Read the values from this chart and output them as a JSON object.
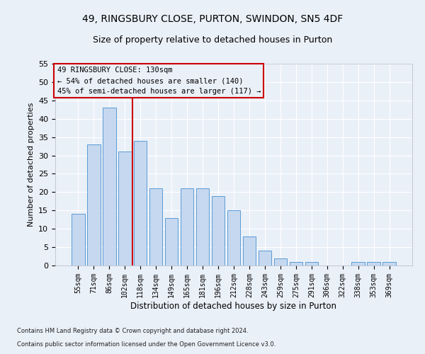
{
  "title1": "49, RINGSBURY CLOSE, PURTON, SWINDON, SN5 4DF",
  "title2": "Size of property relative to detached houses in Purton",
  "xlabel": "Distribution of detached houses by size in Purton",
  "ylabel": "Number of detached properties",
  "categories": [
    "55sqm",
    "71sqm",
    "86sqm",
    "102sqm",
    "118sqm",
    "134sqm",
    "149sqm",
    "165sqm",
    "181sqm",
    "196sqm",
    "212sqm",
    "228sqm",
    "243sqm",
    "259sqm",
    "275sqm",
    "291sqm",
    "306sqm",
    "322sqm",
    "338sqm",
    "353sqm",
    "369sqm"
  ],
  "values": [
    14,
    33,
    43,
    31,
    34,
    21,
    13,
    21,
    21,
    19,
    15,
    8,
    4,
    2,
    1,
    1,
    0,
    0,
    1,
    1,
    1
  ],
  "bar_color": "#c5d8f0",
  "bar_edge_color": "#5b9bd5",
  "ref_line_label": "49 RINGSBURY CLOSE: 130sqm",
  "annotation_line1": "← 54% of detached houses are smaller (140)",
  "annotation_line2": "45% of semi-detached houses are larger (117) →",
  "ylim": [
    0,
    55
  ],
  "yticks": [
    0,
    5,
    10,
    15,
    20,
    25,
    30,
    35,
    40,
    45,
    50,
    55
  ],
  "footer1": "Contains HM Land Registry data © Crown copyright and database right 2024.",
  "footer2": "Contains public sector information licensed under the Open Government Licence v3.0.",
  "bg_color": "#eaf0f8",
  "grid_color": "#ffffff",
  "annotation_box_color": "#cc0000",
  "title1_fontsize": 10,
  "title2_fontsize": 9,
  "ref_line_bar_index": 3.5
}
